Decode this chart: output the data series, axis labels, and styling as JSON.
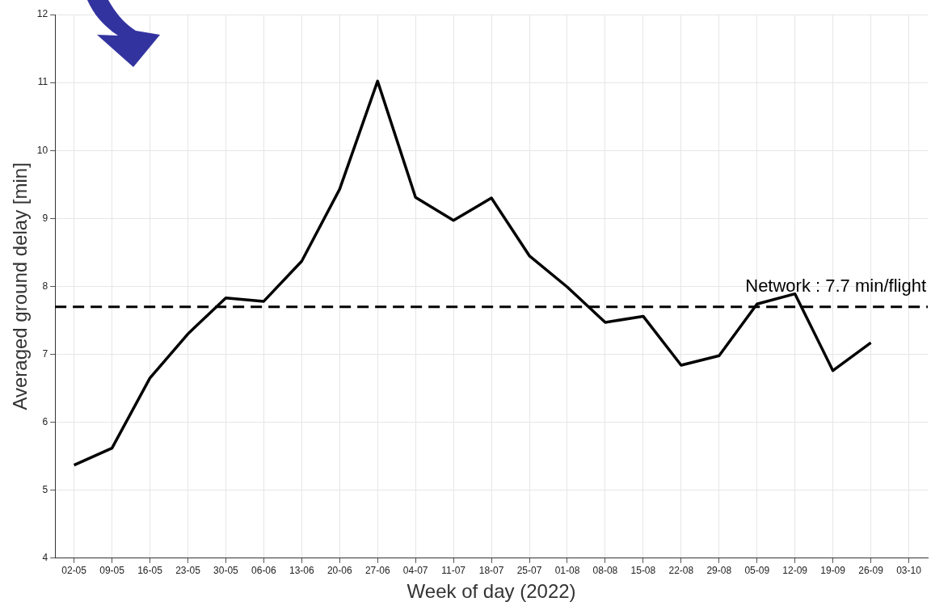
{
  "chart_data": {
    "type": "line",
    "xlabel": "Week of day (2022)",
    "ylabel": "Averaged ground delay [min]",
    "categories": [
      "02-05",
      "09-05",
      "16-05",
      "23-05",
      "30-05",
      "06-06",
      "13-06",
      "20-06",
      "27-06",
      "04-07",
      "11-07",
      "18-07",
      "25-07",
      "01-08",
      "08-08",
      "15-08",
      "22-08",
      "29-08",
      "05-09",
      "12-09",
      "19-09",
      "26-09",
      "03-10"
    ],
    "series": [
      {
        "color": "#000000",
        "values": [
          5.37,
          5.62,
          6.65,
          7.3,
          7.83,
          7.78,
          8.37,
          9.43,
          11.02,
          9.31,
          8.97,
          9.3,
          8.45,
          7.99,
          7.47,
          7.56,
          6.84,
          6.98,
          7.74,
          7.89,
          6.76,
          7.17,
          null
        ]
      }
    ],
    "ylim": [
      4,
      12
    ],
    "yticks": [
      4,
      5,
      6,
      7,
      8,
      9,
      10,
      11,
      12
    ],
    "grid": true,
    "legend": false,
    "marker": "none",
    "line_style": "solid",
    "ref_lines": [
      {
        "axis": "y",
        "value": 7.7,
        "label": "Network : 7.7 min/flight",
        "color": "#000000",
        "line_style": "dashed"
      }
    ]
  }
}
